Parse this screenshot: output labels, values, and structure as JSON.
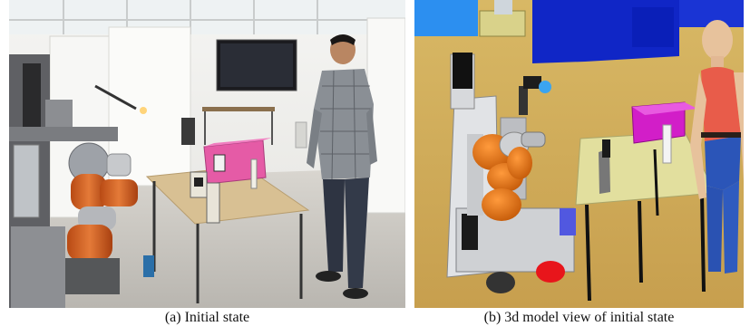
{
  "figure": {
    "panels": [
      {
        "id": "a",
        "caption": "(a) Initial state"
      },
      {
        "id": "b",
        "caption": "(b) 3d model view of initial state"
      }
    ],
    "colors": {
      "robot_arm_orange": "#e0701c",
      "box_magenta": "#d21ec8",
      "shirt_red": "#e85c4a",
      "jeans_blue": "#2b55b8",
      "floor_tan": "#d7b261",
      "wall_blue": "#1028c8"
    }
  }
}
